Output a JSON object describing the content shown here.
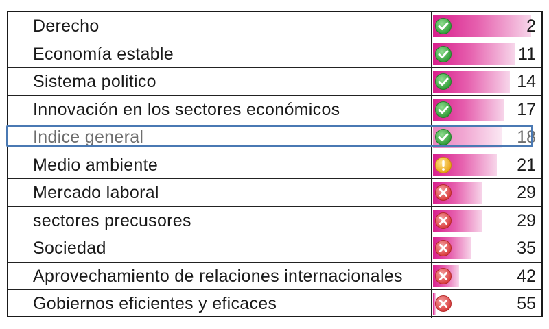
{
  "chart_data": {
    "type": "table",
    "rows": [
      {
        "label": "Derecho",
        "value": 2,
        "status": "green-check-icon"
      },
      {
        "label": "Economía estable",
        "value": 11,
        "status": "green-check-icon"
      },
      {
        "label": "Sistema politico",
        "value": 14,
        "status": "green-check-icon"
      },
      {
        "label": "Innovación en los sectores económicos",
        "value": 17,
        "status": "green-check-icon"
      },
      {
        "label": "Indice general",
        "value": 18,
        "status": "green-check-icon",
        "highlighted": true
      },
      {
        "label": "Medio ambiente",
        "value": 21,
        "status": "yellow-exclamation-icon"
      },
      {
        "label": "Mercado laboral",
        "value": 29,
        "status": "red-x-icon"
      },
      {
        "label": "sectores precusores",
        "value": 29,
        "status": "red-x-icon"
      },
      {
        "label": "Sociedad",
        "value": 35,
        "status": "red-x-icon"
      },
      {
        "label": "Aprovechamiento de relaciones internacionales",
        "value": 42,
        "status": "red-x-icon"
      },
      {
        "label": "Gobiernos eficientes y eficaces",
        "value": 55,
        "status": "red-x-icon"
      }
    ],
    "bar_scale_max": 55,
    "colors": {
      "bar": "#d81e8c",
      "highlight_border": "#4a79b3"
    }
  }
}
